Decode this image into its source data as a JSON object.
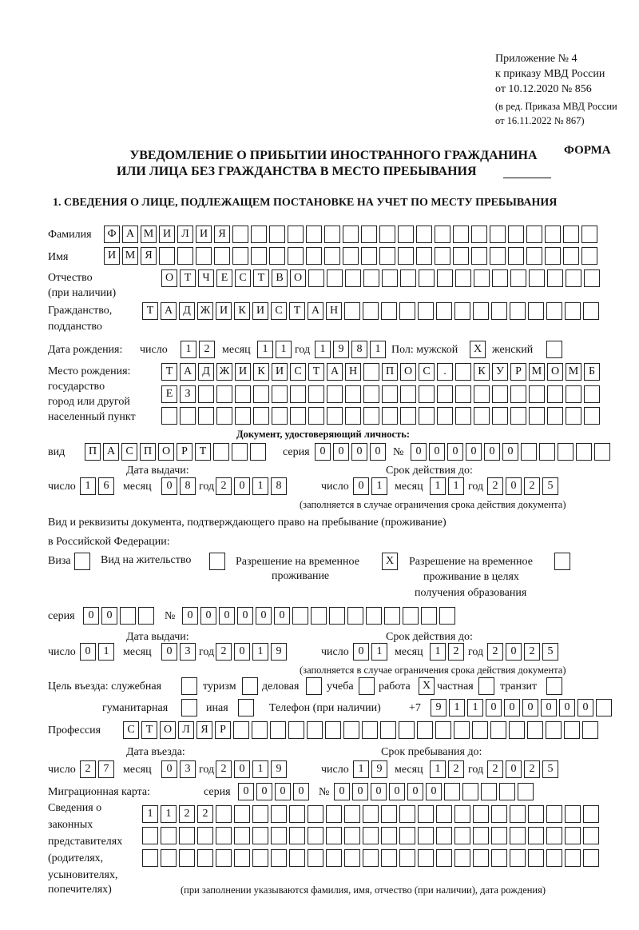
{
  "header": {
    "line1": "Приложение № 4",
    "line2": "к приказу МВД России",
    "line3": "от 10.12.2020 № 856",
    "line4": "(в ред. Приказа МВД России",
    "line5": "от 16.11.2022 № 867)",
    "forma": "ФОРМА"
  },
  "title": {
    "line1": "УВЕДОМЛЕНИЕ О ПРИБЫТИИ ИНОСТРАННОГО ГРАЖДАНИНА",
    "line2": "ИЛИ ЛИЦА БЕЗ ГРАЖДАНСТВА В МЕСТО ПРЕБЫВАНИЯ"
  },
  "section1": "1. СВЕДЕНИЯ О ЛИЦЕ, ПОДЛЕЖАЩЕМ ПОСТАНОВКЕ НА УЧЕТ ПО МЕСТУ ПРЕБЫВАНИЯ",
  "labels": {
    "surname": "Фамилия",
    "name": "Имя",
    "patronymic1": "Отчество",
    "patronymic2": "(при наличии)",
    "citizenship1": "Гражданство,",
    "citizenship2": "подданство",
    "dob": "Дата рождения:",
    "day": "число",
    "month": "месяц",
    "year": "год",
    "sex": "Пол: мужской",
    "female": "женский",
    "pob1": "Место рождения:",
    "pob2": "государство",
    "pob3": "город или другой",
    "pob4": "населенный пункт",
    "id_doc": "Документ, удостоверяющий личность:",
    "kind": "вид",
    "series": "серия",
    "number": "№",
    "issue_date": "Дата выдачи:",
    "valid_until": "Срок действия до:",
    "valid_note": "(заполняется в случае ограничения срока действия документа)",
    "stay_doc1": "Вид и реквизиты документа, подтверждающего право на пребывание (проживание)",
    "stay_doc2": "в Российской Федерации:",
    "visa": "Виза",
    "residence": "Вид на жительство",
    "trp1": "Разрешение на временное",
    "trp2": "проживание",
    "trpe1": "Разрешение на временное",
    "trpe2": "проживание в целях",
    "trpe3": "получения образования",
    "purpose": "Цель въезда: служебная",
    "tourism": "туризм",
    "business": "деловая",
    "study": "учеба",
    "work": "работа",
    "private": "частная",
    "transit": "транзит",
    "humanitarian": "гуманитарная",
    "other": "иная",
    "phone": "Телефон (при наличии)",
    "phone_prefix": "+7",
    "profession": "Профессия",
    "entry_date": "Дата въезда:",
    "stay_until": "Срок пребывания до:",
    "migration_card": "Миграционная карта:",
    "reps1": "Сведения о",
    "reps2": "законных",
    "reps3": "представителях",
    "reps4": "(родителях,",
    "reps5": "усыновителях,",
    "reps6": "попечителях)",
    "reps_note": "(при заполнении указываются фамилия, имя, отчество (при наличии), дата рождения)"
  },
  "person": {
    "surname": "ФАМИЛИЯ",
    "name": "ИМЯ",
    "patronymic": "ОТЧЕСТВО",
    "citizenship": "ТАДЖИКИСТАН",
    "dob": {
      "day": "12",
      "month": "11",
      "year": "1981"
    },
    "sex_male": "X",
    "sex_female": "",
    "pob1": "ТАДЖИКИСТАН ПОС. КУРМОМБ",
    "pob2": "ЕЗ",
    "pob3": ""
  },
  "id_document": {
    "kind": "ПАСПОРТ",
    "series": "0000",
    "number": "000000",
    "issue": {
      "day": "16",
      "month": "08",
      "year": "2018"
    },
    "valid": {
      "day": "01",
      "month": "11",
      "year": "2025"
    }
  },
  "stay_document": {
    "visa": "",
    "residence": "",
    "trp": "X",
    "trp_education": "",
    "series": "00",
    "number": "000000",
    "issue": {
      "day": "01",
      "month": "03",
      "year": "2019"
    },
    "valid": {
      "day": "01",
      "month": "12",
      "year": "2025"
    }
  },
  "purpose": {
    "service": "",
    "tourism": "",
    "business": "",
    "study": "",
    "work": "X",
    "private": "",
    "transit": "",
    "humanitarian": "",
    "other": ""
  },
  "phone": "911000000",
  "profession": "СТОЛЯР",
  "entry": {
    "day": "27",
    "month": "03",
    "year": "2019"
  },
  "stay_until": {
    "day": "19",
    "month": "12",
    "year": "2025"
  },
  "migration_card": {
    "series": "0000",
    "number": "000000"
  },
  "representatives": {
    "line1": "1122",
    "line2": "",
    "line3": ""
  }
}
